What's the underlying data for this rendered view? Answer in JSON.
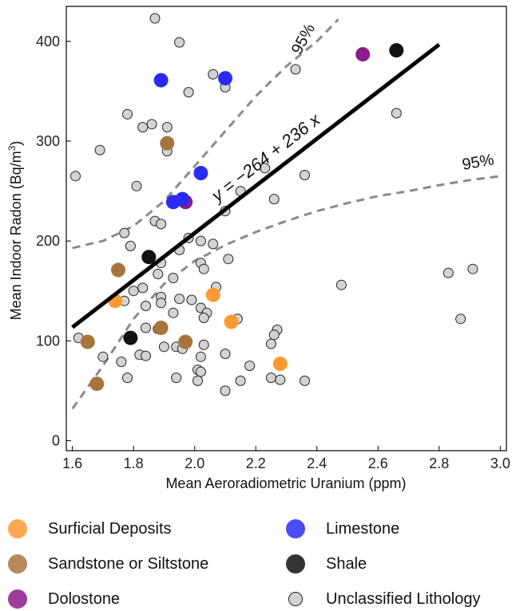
{
  "chart_data": {
    "type": "scatter",
    "xlabel": "Mean Aeroradiometric Uranium (ppm)",
    "ylabel_main": "Mean Indoor Radon (Bq/m",
    "ylabel_sup": "3",
    "ylabel_end": ")",
    "xlim": [
      1.58,
      3.02
    ],
    "ylim": [
      -10,
      435
    ],
    "x_ticks": [
      1.6,
      1.8,
      2.0,
      2.2,
      2.4,
      2.6,
      2.8,
      3.0
    ],
    "x_tick_labels": [
      "1.6",
      "1.8",
      "2.0",
      "2.2",
      "2.4",
      "2.6",
      "2.8",
      "3.0"
    ],
    "y_ticks": [
      0,
      100,
      200,
      300,
      400
    ],
    "y_tick_labels": [
      "0",
      "100",
      "200",
      "300",
      "400"
    ],
    "regression": {
      "label": "y = −264 + 236 x",
      "intercept": -264,
      "slope": 236,
      "x_range": [
        1.6,
        2.8
      ],
      "color": "#000000"
    },
    "confidence_bands": {
      "label_upper": "95%",
      "label_lower": "95%",
      "color": "#8a8a8a",
      "upper": [
        [
          1.6,
          193
        ],
        [
          1.7,
          200
        ],
        [
          1.8,
          215
        ],
        [
          1.9,
          240
        ],
        [
          2.0,
          275
        ],
        [
          2.1,
          310
        ],
        [
          2.2,
          345
        ],
        [
          2.3,
          375
        ],
        [
          2.4,
          400
        ],
        [
          2.47,
          422
        ]
      ],
      "lower": [
        [
          1.6,
          32
        ],
        [
          1.7,
          75
        ],
        [
          1.8,
          122
        ],
        [
          1.9,
          157
        ],
        [
          2.0,
          180
        ],
        [
          2.1,
          196
        ],
        [
          2.2,
          209
        ],
        [
          2.3,
          220
        ],
        [
          2.4,
          230
        ],
        [
          2.5,
          238
        ],
        [
          2.6,
          245
        ],
        [
          2.7,
          250
        ],
        [
          2.8,
          256
        ],
        [
          2.9,
          261
        ],
        [
          3.0,
          265
        ]
      ]
    },
    "series": [
      {
        "name": "Surficial Deposits",
        "color": "#ff9933",
        "stroke": "#ff9933",
        "radius": 9,
        "points": [
          [
            1.74,
            140
          ],
          [
            2.06,
            146
          ],
          [
            2.12,
            119
          ],
          [
            2.28,
            77
          ]
        ]
      },
      {
        "name": "Sandstone or Siltstone",
        "color": "#a8743d",
        "stroke": "#a8743d",
        "radius": 9,
        "points": [
          [
            1.91,
            298
          ],
          [
            1.75,
            171
          ],
          [
            1.65,
            99
          ],
          [
            1.89,
            113
          ],
          [
            1.97,
            99
          ],
          [
            1.68,
            57
          ]
        ]
      },
      {
        "name": "Dolostone",
        "color": "#8b1a8b",
        "stroke": "#8b1a8b",
        "radius": 9,
        "points": [
          [
            2.55,
            387
          ],
          [
            1.97,
            239
          ]
        ]
      },
      {
        "name": "Limestone",
        "color": "#2b2bf0",
        "stroke": "#2b2bf0",
        "radius": 9,
        "points": [
          [
            1.89,
            361
          ],
          [
            2.1,
            363
          ],
          [
            2.02,
            268
          ],
          [
            1.93,
            239
          ],
          [
            1.96,
            242
          ]
        ]
      },
      {
        "name": "Shale",
        "color": "#111111",
        "stroke": "#111111",
        "radius": 9,
        "points": [
          [
            2.66,
            391
          ],
          [
            1.85,
            184
          ],
          [
            1.79,
            103
          ]
        ]
      },
      {
        "name": "Unclassified Lithology",
        "color": "#d3d3d3",
        "stroke": "#222222",
        "radius": 6,
        "points": [
          [
            1.87,
            423
          ],
          [
            1.95,
            399
          ],
          [
            2.06,
            367
          ],
          [
            2.1,
            354
          ],
          [
            1.98,
            349
          ],
          [
            2.33,
            372
          ],
          [
            1.78,
            327
          ],
          [
            1.86,
            317
          ],
          [
            1.83,
            314
          ],
          [
            1.91,
            314
          ],
          [
            2.66,
            328
          ],
          [
            1.69,
            291
          ],
          [
            1.91,
            290
          ],
          [
            1.61,
            265
          ],
          [
            1.81,
            255
          ],
          [
            2.23,
            273
          ],
          [
            2.36,
            266
          ],
          [
            2.15,
            250
          ],
          [
            2.26,
            242
          ],
          [
            2.1,
            230
          ],
          [
            1.87,
            220
          ],
          [
            1.89,
            217
          ],
          [
            1.77,
            208
          ],
          [
            1.98,
            203
          ],
          [
            2.02,
            200
          ],
          [
            2.06,
            197
          ],
          [
            1.79,
            195
          ],
          [
            1.95,
            191
          ],
          [
            2.11,
            182
          ],
          [
            2.02,
            178
          ],
          [
            1.89,
            178
          ],
          [
            2.03,
            172
          ],
          [
            1.93,
            163
          ],
          [
            1.88,
            167
          ],
          [
            1.8,
            150
          ],
          [
            1.83,
            153
          ],
          [
            2.48,
            156
          ],
          [
            2.83,
            168
          ],
          [
            2.91,
            172
          ],
          [
            2.07,
            154
          ],
          [
            1.99,
            141
          ],
          [
            1.89,
            144
          ],
          [
            1.95,
            142
          ],
          [
            1.89,
            138
          ],
          [
            1.84,
            135
          ],
          [
            2.02,
            133
          ],
          [
            2.04,
            128
          ],
          [
            1.77,
            140
          ],
          [
            1.93,
            128
          ],
          [
            2.03,
            123
          ],
          [
            2.14,
            122
          ],
          [
            1.84,
            113
          ],
          [
            1.88,
            112
          ],
          [
            2.27,
            111
          ],
          [
            2.26,
            106
          ],
          [
            2.87,
            122
          ],
          [
            2.25,
            97
          ],
          [
            1.62,
            103
          ],
          [
            1.9,
            94
          ],
          [
            1.94,
            94
          ],
          [
            1.96,
            92
          ],
          [
            1.82,
            86
          ],
          [
            1.84,
            85
          ],
          [
            2.02,
            84
          ],
          [
            2.03,
            96
          ],
          [
            2.1,
            87
          ],
          [
            1.76,
            79
          ],
          [
            1.7,
            84
          ],
          [
            2.18,
            75
          ],
          [
            2.01,
            71
          ],
          [
            2.02,
            69
          ],
          [
            2.01,
            60
          ],
          [
            1.78,
            63
          ],
          [
            1.94,
            63
          ],
          [
            2.15,
            60
          ],
          [
            2.25,
            63
          ],
          [
            2.28,
            61
          ],
          [
            2.36,
            60
          ],
          [
            2.1,
            50
          ]
        ]
      }
    ],
    "legend_placement": "bottom"
  }
}
